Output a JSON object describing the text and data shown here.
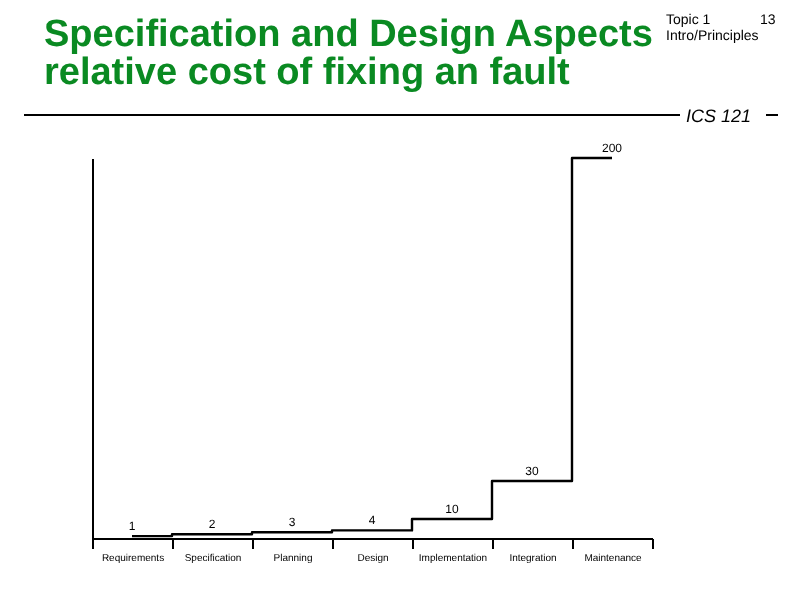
{
  "chart_data": {
    "type": "step",
    "title": "Specification and Design Aspects",
    "subtitle": "relative cost of fixing an fault",
    "categories": [
      "Requirements",
      "Specification",
      "Planning",
      "Design",
      "Implementation",
      "Integration",
      "Maintenance"
    ],
    "values": [
      1,
      2,
      3,
      4,
      10,
      30,
      200
    ],
    "color": "#000000",
    "data_labels": true,
    "annotations": [
      "Topic 1",
      "13",
      "Intro/Principles",
      "ICS 121"
    ]
  }
}
